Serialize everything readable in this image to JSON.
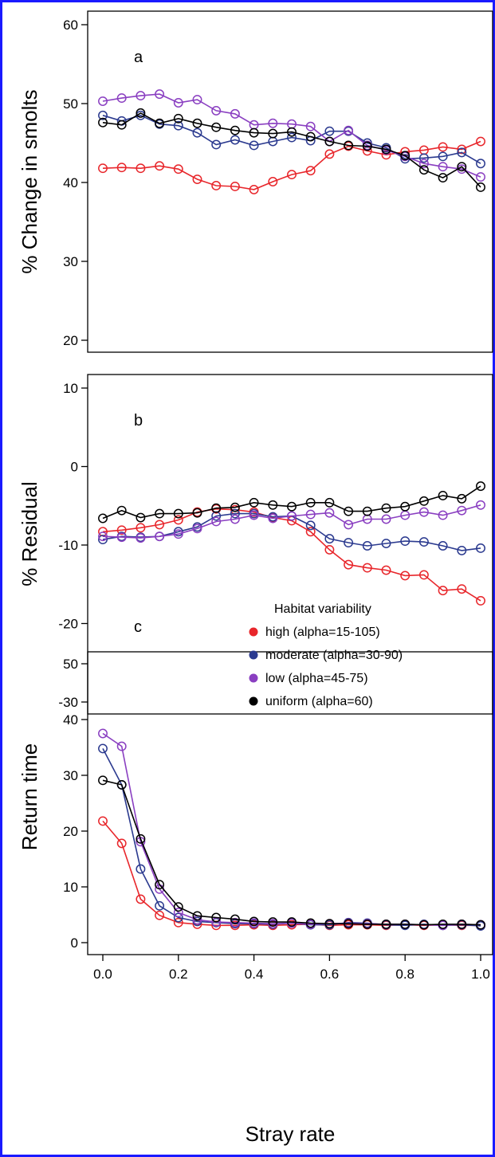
{
  "chart_data": [
    {
      "panel_label": "a",
      "type": "line",
      "ylabel": "% Change in smolts",
      "ylim": [
        20,
        60
      ],
      "yticks": [
        20,
        30,
        40,
        50,
        60
      ],
      "x": [
        0.0,
        0.05,
        0.1,
        0.15,
        0.2,
        0.25,
        0.3,
        0.35,
        0.4,
        0.45,
        0.5,
        0.55,
        0.6,
        0.65,
        0.7,
        0.75,
        0.8,
        0.85,
        0.9,
        0.95,
        1.0
      ],
      "series": [
        {
          "name": "high (alpha=15-105)",
          "color": "#e8262b",
          "values": [
            41.8,
            41.9,
            41.8,
            42.1,
            41.7,
            40.4,
            39.6,
            39.5,
            39.1,
            40.1,
            41.0,
            41.5,
            43.6,
            44.6,
            44.0,
            43.5,
            43.9,
            44.1,
            44.5,
            44.2,
            45.2
          ]
        },
        {
          "name": "moderate (alpha=30-90)",
          "color": "#2b3a8f",
          "values": [
            48.5,
            47.8,
            48.5,
            47.4,
            47.2,
            46.3,
            44.8,
            45.4,
            44.7,
            45.2,
            45.7,
            45.3,
            46.5,
            46.5,
            45.0,
            44.4,
            43.0,
            43.1,
            43.3,
            43.8,
            42.4
          ]
        },
        {
          "name": "low (alpha=45-75)",
          "color": "#8a3fc1",
          "values": [
            50.3,
            50.7,
            51.0,
            51.2,
            50.1,
            50.5,
            49.1,
            48.7,
            47.3,
            47.5,
            47.4,
            47.1,
            45.2,
            46.6,
            44.7,
            44.1,
            43.3,
            42.4,
            42.0,
            41.7,
            40.7
          ]
        },
        {
          "name": "uniform (alpha=60)",
          "color": "#000000",
          "values": [
            47.6,
            47.3,
            48.8,
            47.5,
            48.1,
            47.5,
            47.0,
            46.6,
            46.3,
            46.2,
            46.4,
            45.8,
            45.2,
            44.7,
            44.6,
            44.2,
            43.4,
            41.6,
            40.6,
            42.0,
            39.4
          ]
        }
      ]
    },
    {
      "panel_label": "b",
      "type": "line",
      "ylabel": "% Residual",
      "ylim": [
        -30,
        10
      ],
      "yticks": [
        -30,
        -20,
        -10,
        0,
        10
      ],
      "x": [
        0.0,
        0.05,
        0.1,
        0.15,
        0.2,
        0.25,
        0.3,
        0.35,
        0.4,
        0.45,
        0.5,
        0.55,
        0.6,
        0.65,
        0.7,
        0.75,
        0.8,
        0.85,
        0.9,
        0.95,
        1.0
      ],
      "series": [
        {
          "name": "high (alpha=15-105)",
          "color": "#e8262b",
          "values": [
            -8.3,
            -8.1,
            -7.8,
            -7.4,
            -6.8,
            -5.8,
            -5.4,
            -5.5,
            -5.8,
            -6.5,
            -6.9,
            -8.3,
            -10.6,
            -12.5,
            -12.9,
            -13.2,
            -13.9,
            -13.8,
            -15.8,
            -15.6,
            -17.1
          ]
        },
        {
          "name": "moderate (alpha=30-90)",
          "color": "#2b3a8f",
          "values": [
            -9.3,
            -8.9,
            -9.0,
            -8.9,
            -8.3,
            -7.7,
            -6.3,
            -6.0,
            -6.0,
            -6.4,
            -6.3,
            -7.5,
            -9.2,
            -9.7,
            -10.1,
            -9.8,
            -9.5,
            -9.6,
            -10.1,
            -10.7,
            -10.4
          ]
        },
        {
          "name": "low (alpha=45-75)",
          "color": "#8a3fc1",
          "values": [
            -8.9,
            -9.0,
            -9.1,
            -8.9,
            -8.6,
            -7.9,
            -7.0,
            -6.7,
            -6.2,
            -6.6,
            -6.3,
            -6.1,
            -5.9,
            -7.4,
            -6.7,
            -6.7,
            -6.2,
            -5.8,
            -6.2,
            -5.6,
            -4.9
          ]
        },
        {
          "name": "uniform (alpha=60)",
          "color": "#000000",
          "values": [
            -6.6,
            -5.6,
            -6.5,
            -6.0,
            -6.0,
            -5.9,
            -5.3,
            -5.2,
            -4.6,
            -4.9,
            -5.1,
            -4.6,
            -4.6,
            -5.7,
            -5.7,
            -5.3,
            -5.1,
            -4.4,
            -3.7,
            -4.1,
            -2.5
          ]
        }
      ]
    },
    {
      "panel_label": "c",
      "type": "line",
      "xlabel": "Stray rate",
      "ylabel": "Return time",
      "ylim": [
        0,
        50
      ],
      "yticks": [
        0,
        10,
        20,
        30,
        40,
        50
      ],
      "xlim": [
        0,
        1
      ],
      "xticks": [
        "0.0",
        "0.2",
        "0.4",
        "0.6",
        "0.8",
        "1.0"
      ],
      "legend_title": "Habitat variability",
      "legend_position": "top-right",
      "x": [
        0.0,
        0.05,
        0.1,
        0.15,
        0.2,
        0.25,
        0.3,
        0.35,
        0.4,
        0.45,
        0.5,
        0.55,
        0.6,
        0.65,
        0.7,
        0.75,
        0.8,
        0.85,
        0.9,
        0.95,
        1.0
      ],
      "series": [
        {
          "name": "high (alpha=15-105)",
          "color": "#e8262b",
          "values": [
            21.8,
            17.8,
            7.8,
            4.9,
            3.6,
            3.3,
            3.1,
            3.1,
            3.2,
            3.1,
            3.2,
            3.3,
            3.1,
            3.2,
            3.2,
            3.1,
            3.2,
            3.1,
            3.2,
            3.1,
            3.1
          ]
        },
        {
          "name": "moderate (alpha=30-90)",
          "color": "#2b3a8f",
          "values": [
            34.8,
            28.3,
            13.2,
            6.6,
            4.5,
            3.8,
            3.6,
            3.4,
            3.4,
            3.3,
            3.5,
            3.2,
            3.2,
            3.6,
            3.5,
            3.2,
            3.1,
            3.3,
            3.1,
            3.2,
            3.0
          ]
        },
        {
          "name": "low (alpha=45-75)",
          "color": "#8a3fc1",
          "values": [
            37.5,
            35.2,
            18.1,
            9.6,
            5.4,
            4.1,
            3.7,
            3.6,
            3.5,
            3.4,
            3.5,
            3.3,
            3.4,
            3.5,
            3.4,
            3.3,
            3.3,
            3.2,
            3.1,
            3.3,
            3.2
          ]
        },
        {
          "name": "uniform (alpha=60)",
          "color": "#000000",
          "values": [
            29.1,
            28.3,
            18.6,
            10.4,
            6.4,
            4.8,
            4.5,
            4.2,
            3.8,
            3.7,
            3.7,
            3.5,
            3.4,
            3.4,
            3.3,
            3.3,
            3.3,
            3.2,
            3.3,
            3.3,
            3.2
          ]
        }
      ]
    }
  ]
}
